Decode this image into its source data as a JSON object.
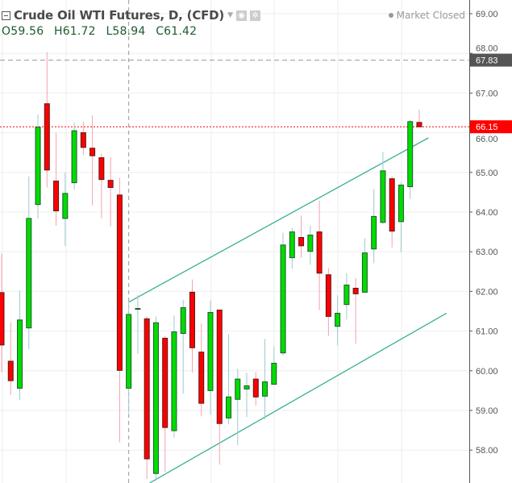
{
  "legend": {
    "title": "Crude Oil WTI Futures, D, (CFD)",
    "open": "O59.56",
    "high": "H61.72",
    "low": "L58.94",
    "close": "C61.42",
    "icons": [
      "collapse-icon",
      "caret-down-icon",
      "eye-icon",
      "gear-icon"
    ]
  },
  "status": "Market Closed",
  "colors": {
    "up": "#00dc00",
    "down": "#ff0000",
    "up_wick": "#9ccbd0",
    "down_wick": "#f4a3ac",
    "channel": "#3aaf96",
    "last_price": "#ff0000",
    "crosshair_label": "#555555"
  },
  "chart_data": {
    "type": "candlestick",
    "ylim": [
      57.2,
      69.3
    ],
    "yticks": [
      "69.00",
      "68.00",
      "67.00",
      "66.00",
      "65.00",
      "64.00",
      "63.00",
      "62.00",
      "61.00",
      "60.00",
      "59.00",
      "58.00"
    ],
    "grid": true,
    "crosshair": {
      "price": 67.83,
      "label": "67.83",
      "candle_index": 14
    },
    "last_price": {
      "price": 66.15,
      "label": "66.15"
    },
    "channel": [
      {
        "from": [
          14,
          61.73
        ],
        "to": [
          47,
          65.87
        ]
      },
      {
        "from": [
          16.3,
          57.17
        ],
        "to": [
          49,
          61.45
        ]
      }
    ],
    "ohlc": [
      [
        61.97,
        62.95,
        59.96,
        60.65
      ],
      [
        60.24,
        61.22,
        59.39,
        59.75
      ],
      [
        59.56,
        62.02,
        59.26,
        61.28
      ],
      [
        61.08,
        64.9,
        60.55,
        63.84
      ],
      [
        64.19,
        66.46,
        63.84,
        66.14
      ],
      [
        66.73,
        68.03,
        64.62,
        65.06
      ],
      [
        64.78,
        66.0,
        63.66,
        64.03
      ],
      [
        63.84,
        65.0,
        63.15,
        64.47
      ],
      [
        64.74,
        66.26,
        64.57,
        66.05
      ],
      [
        66.0,
        66.28,
        65.44,
        65.63
      ],
      [
        65.61,
        66.44,
        64.17,
        65.42
      ],
      [
        65.37,
        65.47,
        63.84,
        64.82
      ],
      [
        64.8,
        65.39,
        63.64,
        64.62
      ],
      [
        64.43,
        64.86,
        58.2,
        60.01
      ],
      [
        59.56,
        61.72,
        58.94,
        61.42
      ],
      [
        61.57,
        61.91,
        60.43,
        61.57
      ],
      [
        61.31,
        61.37,
        57.27,
        57.78
      ],
      [
        57.41,
        61.37,
        57.23,
        61.21
      ],
      [
        60.82,
        60.88,
        57.45,
        58.57
      ],
      [
        58.49,
        61.39,
        58.32,
        60.98
      ],
      [
        60.94,
        61.79,
        59.42,
        61.59
      ],
      [
        61.98,
        62.3,
        59.95,
        60.58
      ],
      [
        60.47,
        61.19,
        58.85,
        59.18
      ],
      [
        59.5,
        61.77,
        58.89,
        61.47
      ],
      [
        61.53,
        61.53,
        57.63,
        58.67
      ],
      [
        58.81,
        60.92,
        58.65,
        59.34
      ],
      [
        59.28,
        60.05,
        58.12,
        59.79
      ],
      [
        59.54,
        59.95,
        58.83,
        59.62
      ],
      [
        59.79,
        59.97,
        59.12,
        59.34
      ],
      [
        59.36,
        60.8,
        58.77,
        59.72
      ],
      [
        59.66,
        60.62,
        59.66,
        60.19
      ],
      [
        60.45,
        63.48,
        60.39,
        63.17
      ],
      [
        62.85,
        63.6,
        62.57,
        63.5
      ],
      [
        63.36,
        63.91,
        62.85,
        63.15
      ],
      [
        63.01,
        63.66,
        62.67,
        63.42
      ],
      [
        63.5,
        64.29,
        61.53,
        62.46
      ],
      [
        62.42,
        62.59,
        60.88,
        61.37
      ],
      [
        61.12,
        61.9,
        60.64,
        61.45
      ],
      [
        61.67,
        62.46,
        61.29,
        62.16
      ],
      [
        62.08,
        62.34,
        60.68,
        61.94
      ],
      [
        61.98,
        63.34,
        61.96,
        62.97
      ],
      [
        63.07,
        64.58,
        62.71,
        63.89
      ],
      [
        63.74,
        65.51,
        63.7,
        65.04
      ],
      [
        64.84,
        64.9,
        63.11,
        63.52
      ],
      [
        63.76,
        64.76,
        62.99,
        64.68
      ],
      [
        64.64,
        66.32,
        64.33,
        66.28
      ],
      [
        66.26,
        66.58,
        66.14,
        66.15
      ]
    ]
  }
}
